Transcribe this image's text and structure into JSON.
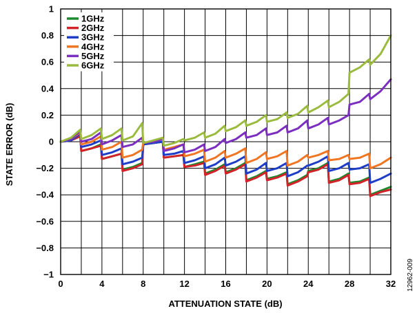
{
  "chart_data": {
    "type": "line",
    "xlabel": "ATTENUATION STATE (dB)",
    "ylabel": "STATE ERROR (dB)",
    "xlim": [
      0,
      32
    ],
    "ylim": [
      -1,
      1
    ],
    "x_ticks": [
      0,
      4,
      8,
      12,
      16,
      20,
      24,
      28,
      32
    ],
    "y_ticks": [
      1,
      0.8,
      0.6,
      0.4,
      0.2,
      0,
      -0.2,
      -0.4,
      -0.6,
      -0.8,
      -1
    ],
    "x_tick_labels": [
      "0",
      "4",
      "8",
      "12",
      "16",
      "20",
      "24",
      "28",
      "32"
    ],
    "y_tick_labels": [
      "1",
      "0.8",
      "0.6",
      "0.4",
      "0.2",
      "0",
      "−0.2",
      "−0.4",
      "−0.6",
      "−0.8",
      "−1"
    ],
    "grid": true,
    "legend_position": "top-left",
    "figure_id": "12962-009",
    "series": [
      {
        "name": "1GHz",
        "color": "#1e8a2e",
        "x": [
          0,
          1,
          1.9,
          2,
          3,
          3.9,
          4,
          5,
          5.9,
          6,
          7,
          7.9,
          8,
          9,
          9.9,
          10,
          11,
          11.9,
          12,
          13,
          13.9,
          14,
          15,
          15.9,
          16,
          17,
          17.9,
          18,
          19,
          19.9,
          20,
          21,
          21.9,
          22,
          23,
          23.9,
          24,
          25,
          25.9,
          26,
          27,
          27.9,
          28,
          29,
          29.9,
          30,
          31,
          32
        ],
        "y": [
          0,
          0.01,
          0.05,
          -0.07,
          -0.05,
          -0.02,
          -0.13,
          -0.11,
          -0.09,
          -0.21,
          -0.19,
          -0.16,
          -0.02,
          -0.01,
          0,
          -0.12,
          -0.11,
          -0.1,
          -0.19,
          -0.17,
          -0.15,
          -0.24,
          -0.21,
          -0.17,
          -0.23,
          -0.2,
          -0.16,
          -0.29,
          -0.26,
          -0.22,
          -0.28,
          -0.26,
          -0.23,
          -0.32,
          -0.29,
          -0.25,
          -0.22,
          -0.2,
          -0.16,
          -0.3,
          -0.28,
          -0.24,
          -0.31,
          -0.3,
          -0.27,
          -0.4,
          -0.37,
          -0.34
        ]
      },
      {
        "name": "2GHz",
        "color": "#d2232a",
        "x": [
          0,
          1,
          1.9,
          2,
          3,
          3.9,
          4,
          5,
          5.9,
          6,
          7,
          7.9,
          8,
          9,
          9.9,
          10,
          11,
          11.9,
          12,
          13,
          13.9,
          14,
          15,
          15.9,
          16,
          17,
          17.9,
          18,
          19,
          19.9,
          20,
          21,
          21.9,
          22,
          23,
          23.9,
          24,
          25,
          25.9,
          26,
          27,
          27.9,
          28,
          29,
          29.9,
          30,
          31,
          32
        ],
        "y": [
          0,
          0.01,
          0.04,
          -0.07,
          -0.05,
          -0.03,
          -0.13,
          -0.11,
          -0.09,
          -0.22,
          -0.2,
          -0.17,
          -0.02,
          -0.01,
          0,
          -0.12,
          -0.11,
          -0.1,
          -0.19,
          -0.18,
          -0.16,
          -0.25,
          -0.22,
          -0.18,
          -0.24,
          -0.21,
          -0.17,
          -0.3,
          -0.27,
          -0.23,
          -0.29,
          -0.27,
          -0.24,
          -0.33,
          -0.3,
          -0.26,
          -0.23,
          -0.21,
          -0.17,
          -0.31,
          -0.29,
          -0.25,
          -0.32,
          -0.31,
          -0.28,
          -0.41,
          -0.38,
          -0.36
        ]
      },
      {
        "name": "3GHz",
        "color": "#1f3ec8",
        "x": [
          0,
          1,
          1.9,
          2,
          3,
          3.9,
          4,
          5,
          5.9,
          6,
          7,
          7.9,
          8,
          9,
          9.9,
          10,
          11,
          11.9,
          12,
          13,
          13.9,
          14,
          15,
          15.9,
          16,
          17,
          17.9,
          18,
          19,
          19.9,
          20,
          21,
          21.9,
          22,
          23,
          23.9,
          24,
          25,
          25.9,
          26,
          27,
          27.9,
          28,
          29,
          29.9,
          30,
          31,
          32
        ],
        "y": [
          0,
          0.01,
          0.06,
          -0.04,
          -0.02,
          0.01,
          -0.1,
          -0.08,
          -0.05,
          -0.17,
          -0.15,
          -0.12,
          -0.02,
          -0.01,
          0,
          -0.1,
          -0.09,
          -0.07,
          -0.16,
          -0.14,
          -0.11,
          -0.2,
          -0.17,
          -0.12,
          -0.18,
          -0.15,
          -0.11,
          -0.24,
          -0.21,
          -0.16,
          -0.22,
          -0.2,
          -0.16,
          -0.26,
          -0.23,
          -0.18,
          -0.18,
          -0.15,
          -0.11,
          -0.22,
          -0.2,
          -0.16,
          -0.21,
          -0.2,
          -0.17,
          -0.31,
          -0.28,
          -0.24
        ]
      },
      {
        "name": "4GHz",
        "color": "#ef7622",
        "x": [
          0,
          1,
          1.9,
          2,
          3,
          3.9,
          4,
          5,
          5.9,
          6,
          7,
          7.9,
          8,
          9,
          9.9,
          10,
          11,
          11.9,
          12,
          13,
          13.9,
          14,
          15,
          15.9,
          16,
          17,
          17.9,
          18,
          19,
          19.9,
          20,
          21,
          21.9,
          22,
          23,
          23.9,
          24,
          25,
          25.9,
          26,
          27,
          27.9,
          28,
          29,
          29.9,
          30,
          31,
          32
        ],
        "y": [
          0,
          0.02,
          0.07,
          -0.02,
          0,
          0.04,
          -0.06,
          -0.04,
          0,
          -0.12,
          -0.1,
          -0.06,
          -0.01,
          0,
          0.02,
          -0.06,
          -0.04,
          -0.02,
          -0.11,
          -0.09,
          -0.06,
          -0.15,
          -0.12,
          -0.07,
          -0.12,
          -0.09,
          -0.05,
          -0.16,
          -0.13,
          -0.08,
          -0.13,
          -0.11,
          -0.07,
          -0.18,
          -0.15,
          -0.1,
          -0.12,
          -0.1,
          -0.07,
          -0.14,
          -0.13,
          -0.1,
          -0.13,
          -0.12,
          -0.09,
          -0.2,
          -0.17,
          -0.12
        ]
      },
      {
        "name": "5GHz",
        "color": "#7b2fbe",
        "x": [
          0,
          1,
          1.9,
          2,
          3,
          3.9,
          4,
          5,
          5.9,
          6,
          7,
          7.9,
          8,
          9,
          9.9,
          10,
          11,
          11.9,
          12,
          13,
          13.9,
          14,
          15,
          15.9,
          16,
          17,
          17.9,
          18,
          19,
          19.9,
          20,
          21,
          21.9,
          22,
          23,
          23.9,
          24,
          25,
          25.9,
          26,
          27,
          27.9,
          28,
          29,
          29.9,
          30,
          31,
          32
        ],
        "y": [
          0,
          0.02,
          0.08,
          0,
          0.02,
          0.07,
          -0.02,
          0.01,
          0.05,
          -0.04,
          -0.02,
          0.03,
          -0.01,
          0,
          0.02,
          -0.07,
          -0.05,
          -0.02,
          -0.08,
          -0.06,
          -0.02,
          -0.07,
          -0.04,
          0.02,
          -0.01,
          0.02,
          0.07,
          0.03,
          0.05,
          0.1,
          0.05,
          0.07,
          0.12,
          0.07,
          0.1,
          0.16,
          0.1,
          0.13,
          0.18,
          0.13,
          0.16,
          0.2,
          0.28,
          0.3,
          0.36,
          0.32,
          0.38,
          0.47
        ]
      },
      {
        "name": "6GHz",
        "color": "#9bbb3e",
        "x": [
          0,
          1,
          1.9,
          2,
          3,
          3.9,
          4,
          5,
          5.9,
          6,
          7,
          7.9,
          8,
          9,
          9.9,
          10,
          11,
          11.9,
          12,
          13,
          13.9,
          14,
          15,
          15.9,
          16,
          17,
          17.9,
          18,
          19,
          19.9,
          20,
          21,
          21.9,
          22,
          23,
          23.9,
          24,
          25,
          25.9,
          26,
          27,
          27.9,
          28,
          29,
          29.9,
          30,
          31,
          32
        ],
        "y": [
          0,
          0.03,
          0.09,
          0.02,
          0.05,
          0.1,
          0.02,
          0.05,
          0.1,
          0.01,
          0.04,
          0.14,
          -0.01,
          0.01,
          0.03,
          -0.03,
          -0.01,
          0.02,
          0.01,
          0.03,
          0.07,
          0.03,
          0.06,
          0.12,
          0.08,
          0.11,
          0.16,
          0.12,
          0.15,
          0.2,
          0.15,
          0.17,
          0.22,
          0.18,
          0.21,
          0.27,
          0.22,
          0.26,
          0.31,
          0.26,
          0.3,
          0.36,
          0.52,
          0.56,
          0.62,
          0.58,
          0.66,
          0.8
        ]
      }
    ]
  }
}
